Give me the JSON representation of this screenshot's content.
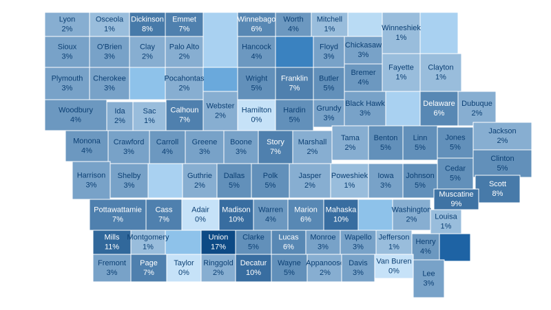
{
  "chart_data": {
    "type": "choropleth",
    "regions": [
      "Lyon",
      "Osceola",
      "Dickinson",
      "Emmet",
      "Winnebago",
      "Worth",
      "Mitchell",
      "Winneshiek",
      "Sioux",
      "O'Brien",
      "Clay",
      "Palo Alto",
      "Hancock",
      "Floyd",
      "Chickasaw",
      "Fayette",
      "Clayton",
      "Plymouth",
      "Cherokee",
      "Pocahontas",
      "Wright",
      "Franklin",
      "Butler",
      "Bremer",
      "Black Hawk",
      "Delaware",
      "Dubuque",
      "Woodbury",
      "Ida",
      "Sac",
      "Calhoun",
      "Webster",
      "Hamilton",
      "Hardin",
      "Grundy",
      "Monona",
      "Crawford",
      "Carroll",
      "Greene",
      "Boone",
      "Story",
      "Marshall",
      "Tama",
      "Benton",
      "Linn",
      "Jones",
      "Jackson",
      "Clinton",
      "Harrison",
      "Shelby",
      "Guthrie",
      "Dallas",
      "Polk",
      "Jasper",
      "Poweshiek",
      "Iowa",
      "Johnson",
      "Cedar",
      "Scott",
      "Muscatine",
      "Pottawattamie",
      "Cass",
      "Adair",
      "Madison",
      "Warren",
      "Marion",
      "Mahaska",
      "Washington",
      "Louisa",
      "Mills",
      "Montgomery",
      "Union",
      "Clarke",
      "Lucas",
      "Monroe",
      "Wapello",
      "Jefferson",
      "Henry",
      "Fremont",
      "Page",
      "Taylor",
      "Ringgold",
      "Decatur",
      "Wayne",
      "Appanoose",
      "Davis",
      "Van Buren",
      "Lee"
    ],
    "values": [
      2,
      1,
      8,
      7,
      6,
      4,
      1,
      1,
      3,
      3,
      2,
      2,
      4,
      3,
      3,
      1,
      1,
      3,
      3,
      2,
      5,
      7,
      5,
      4,
      3,
      6,
      2,
      4,
      2,
      1,
      7,
      2,
      0,
      5,
      3,
      4,
      3,
      4,
      3,
      3,
      7,
      2,
      2,
      5,
      5,
      5,
      2,
      5,
      3,
      3,
      2,
      5,
      5,
      2,
      1,
      3,
      5,
      5,
      8,
      9,
      7,
      7,
      0,
      10,
      4,
      6,
      10,
      2,
      1,
      11,
      1,
      17,
      5,
      6,
      3,
      3,
      1,
      4,
      3,
      7,
      0,
      2,
      10,
      5,
      2,
      3,
      0,
      3
    ],
    "value_labels": [
      "2%",
      "1%",
      "8%",
      "7%",
      "6%",
      "4%",
      "1%",
      "1%",
      "3%",
      "3%",
      "2%",
      "2%",
      "4%",
      "3%",
      "3%",
      "1%",
      "1%",
      "3%",
      "3%",
      "2%",
      "5%",
      "7%",
      "5%",
      "4%",
      "3%",
      "6%",
      "2%",
      "4%",
      "2%",
      "1%",
      "7%",
      "2%",
      "0%",
      "5%",
      "3%",
      "4%",
      "3%",
      "4%",
      "3%",
      "3%",
      "7%",
      "2%",
      "2%",
      "5%",
      "5%",
      "5%",
      "2%",
      "5%",
      "3%",
      "3%",
      "2%",
      "5%",
      "5%",
      "2%",
      "1%",
      "3%",
      "5%",
      "5%",
      "8%",
      "9%",
      "7%",
      "7%",
      "0%",
      "10%",
      "4%",
      "6%",
      "10%",
      "2%",
      "1%",
      "11%",
      "1%",
      "17%",
      "5%",
      "6%",
      "3%",
      "3%",
      "1%",
      "4%",
      "3%",
      "7%",
      "0%",
      "2%",
      "10%",
      "5%",
      "2%",
      "3%",
      "0%",
      "3%"
    ],
    "color_range": [
      "#c6e2f8",
      "#0d4a85"
    ]
  }
}
